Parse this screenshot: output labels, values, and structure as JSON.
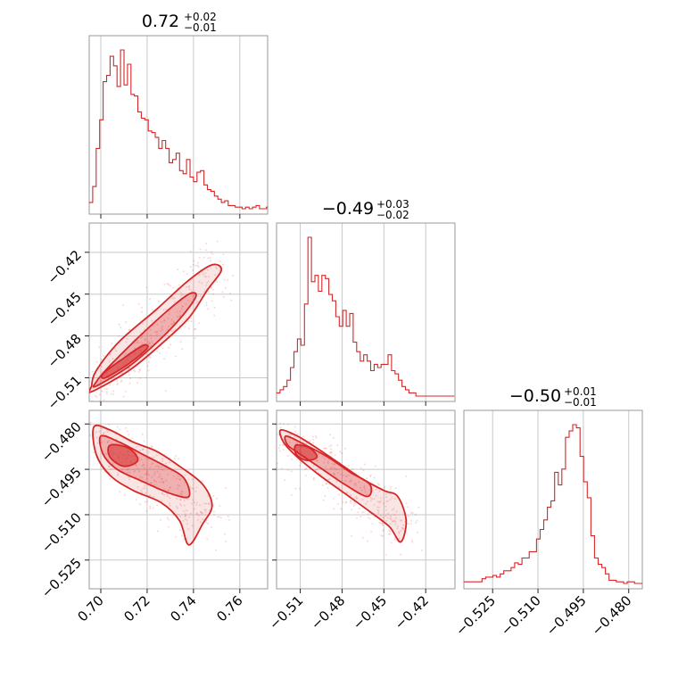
{
  "chart_data": {
    "type": "corner",
    "color": "#d62728",
    "parameters": [
      {
        "range": [
          0.695,
          0.772
        ],
        "ticks": [
          0.7,
          0.72,
          0.74,
          0.76
        ],
        "tick_labels": [
          "0.70",
          "0.72",
          "0.74",
          "0.76"
        ],
        "title": {
          "value": "0.72",
          "upper": "+0.02",
          "lower": "−0.01"
        },
        "hist_edges_start": 0.695,
        "hist_bin_width": 0.0015,
        "hist_counts": [
          4,
          14,
          38,
          56,
          80,
          84,
          96,
          90,
          77,
          100,
          78,
          91,
          72,
          71,
          61,
          57,
          56,
          49,
          48,
          45,
          38,
          43,
          38,
          29,
          31,
          35,
          24,
          22,
          31,
          20,
          17,
          23,
          24,
          15,
          12,
          11,
          8,
          6,
          4,
          5,
          2,
          2,
          1,
          1,
          0,
          1,
          0,
          1,
          2,
          0,
          0,
          1
        ]
      },
      {
        "range": [
          -0.527,
          -0.399
        ],
        "ticks": [
          -0.51,
          -0.48,
          -0.45,
          -0.42
        ],
        "tick_labels": [
          "−0.51",
          "−0.48",
          "−0.45",
          "−0.42"
        ],
        "title": {
          "value": "−0.49",
          "upper": "+0.03",
          "lower": "−0.02"
        },
        "hist_edges_start": -0.527,
        "hist_bin_width": 0.0025,
        "hist_counts": [
          2,
          4,
          6,
          10,
          18,
          28,
          36,
          32,
          58,
          100,
          72,
          76,
          66,
          76,
          74,
          64,
          60,
          50,
          44,
          54,
          44,
          52,
          34,
          28,
          22,
          26,
          22,
          16,
          20,
          18,
          20,
          20,
          26,
          16,
          14,
          10,
          6,
          4,
          2,
          2,
          0,
          0,
          0,
          0,
          0,
          0,
          0,
          0,
          0,
          0,
          0
        ]
      },
      {
        "range": [
          -0.5345,
          -0.4755
        ],
        "ticks": [
          -0.525,
          -0.51,
          -0.495,
          -0.48
        ],
        "tick_labels": [
          "−0.525",
          "−0.510",
          "−0.495",
          "−0.480"
        ],
        "title": {
          "value": "−0.50",
          "upper": "+0.01",
          "lower": "−0.01"
        },
        "hist_edges_start": -0.5345,
        "hist_bin_width": 0.0012,
        "hist_counts": [
          1,
          1,
          1,
          1,
          1,
          3,
          4,
          4,
          5,
          4,
          6,
          8,
          8,
          10,
          13,
          12,
          16,
          16,
          20,
          20,
          28,
          34,
          40,
          48,
          52,
          70,
          62,
          72,
          92,
          96,
          100,
          98,
          80,
          64,
          54,
          30,
          16,
          12,
          10,
          6,
          2,
          2,
          1,
          1,
          0,
          1,
          1,
          0,
          0,
          0
        ]
      }
    ],
    "pairs": [
      {
        "x_param": 0,
        "y_param": 1,
        "ridge": [
          [
            0.697,
            -0.518
          ],
          [
            0.7,
            -0.515
          ],
          [
            0.705,
            -0.508
          ],
          [
            0.71,
            -0.5
          ],
          [
            0.715,
            -0.493
          ],
          [
            0.72,
            -0.485
          ],
          [
            0.725,
            -0.477
          ],
          [
            0.73,
            -0.47
          ],
          [
            0.735,
            -0.46
          ],
          [
            0.74,
            -0.45
          ],
          [
            0.745,
            -0.438
          ],
          [
            0.749,
            -0.43
          ]
        ],
        "contours": [
          {
            "level": "outer",
            "points": [
              [
                0.696,
                -0.52
              ],
              [
                0.712,
                -0.505
              ],
              [
                0.726,
                -0.486
              ],
              [
                0.738,
                -0.467
              ],
              [
                0.746,
                -0.447
              ],
              [
                0.752,
                -0.433
              ],
              [
                0.748,
                -0.429
              ],
              [
                0.738,
                -0.44
              ],
              [
                0.724,
                -0.461
              ],
              [
                0.708,
                -0.484
              ],
              [
                0.698,
                -0.505
              ],
              [
                0.696,
                -0.516
              ]
            ]
          },
          {
            "level": "middle",
            "points": [
              [
                0.698,
                -0.516
              ],
              [
                0.712,
                -0.502
              ],
              [
                0.724,
                -0.485
              ],
              [
                0.734,
                -0.468
              ],
              [
                0.741,
                -0.452
              ],
              [
                0.738,
                -0.45
              ],
              [
                0.728,
                -0.463
              ],
              [
                0.715,
                -0.483
              ],
              [
                0.703,
                -0.503
              ],
              [
                0.698,
                -0.513
              ]
            ]
          },
          {
            "level": "inner",
            "points": [
              [
                0.702,
                -0.51
              ],
              [
                0.712,
                -0.5
              ],
              [
                0.72,
                -0.489
              ],
              [
                0.718,
                -0.487
              ],
              [
                0.709,
                -0.497
              ],
              [
                0.701,
                -0.507
              ]
            ]
          }
        ],
        "scatter_spread": [
          0.006,
          0.01
        ]
      },
      {
        "x_param": 0,
        "y_param": 2,
        "ridge": [
          [
            0.698,
            -0.482
          ],
          [
            0.703,
            -0.487
          ],
          [
            0.708,
            -0.49
          ],
          [
            0.713,
            -0.493
          ],
          [
            0.718,
            -0.495
          ],
          [
            0.723,
            -0.497
          ],
          [
            0.728,
            -0.5
          ],
          [
            0.733,
            -0.504
          ],
          [
            0.738,
            -0.508
          ],
          [
            0.742,
            -0.512
          ]
        ],
        "contours": [
          {
            "level": "outer",
            "points": [
              [
                0.697,
                -0.481
              ],
              [
                0.704,
                -0.482
              ],
              [
                0.714,
                -0.486
              ],
              [
                0.724,
                -0.489
              ],
              [
                0.734,
                -0.494
              ],
              [
                0.744,
                -0.5
              ],
              [
                0.748,
                -0.507
              ],
              [
                0.744,
                -0.513
              ],
              [
                0.738,
                -0.52
              ],
              [
                0.734,
                -0.512
              ],
              [
                0.726,
                -0.506
              ],
              [
                0.714,
                -0.502
              ],
              [
                0.704,
                -0.497
              ],
              [
                0.698,
                -0.49
              ]
            ]
          },
          {
            "level": "middle",
            "points": [
              [
                0.7,
                -0.484
              ],
              [
                0.708,
                -0.486
              ],
              [
                0.718,
                -0.49
              ],
              [
                0.728,
                -0.494
              ],
              [
                0.736,
                -0.498
              ],
              [
                0.738,
                -0.504
              ],
              [
                0.73,
                -0.503
              ],
              [
                0.718,
                -0.499
              ],
              [
                0.707,
                -0.495
              ],
              [
                0.701,
                -0.49
              ]
            ]
          },
          {
            "level": "inner",
            "points": [
              [
                0.704,
                -0.487
              ],
              [
                0.712,
                -0.488
              ],
              [
                0.716,
                -0.492
              ],
              [
                0.71,
                -0.494
              ],
              [
                0.704,
                -0.491
              ]
            ]
          }
        ],
        "scatter_spread": [
          0.007,
          0.004
        ]
      },
      {
        "x_param": 1,
        "y_param": 2,
        "ridge": [
          [
            -0.522,
            -0.483
          ],
          [
            -0.512,
            -0.488
          ],
          [
            -0.502,
            -0.492
          ],
          [
            -0.492,
            -0.496
          ],
          [
            -0.482,
            -0.499
          ],
          [
            -0.472,
            -0.502
          ],
          [
            -0.462,
            -0.505
          ],
          [
            -0.452,
            -0.508
          ],
          [
            -0.442,
            -0.512
          ],
          [
            -0.437,
            -0.515
          ]
        ],
        "contours": [
          {
            "level": "outer",
            "points": [
              [
                -0.524,
                -0.482
              ],
              [
                -0.512,
                -0.484
              ],
              [
                -0.498,
                -0.488
              ],
              [
                -0.482,
                -0.493
              ],
              [
                -0.466,
                -0.498
              ],
              [
                -0.45,
                -0.502
              ],
              [
                -0.44,
                -0.504
              ],
              [
                -0.434,
                -0.512
              ],
              [
                -0.438,
                -0.519
              ],
              [
                -0.446,
                -0.514
              ],
              [
                -0.46,
                -0.509
              ],
              [
                -0.478,
                -0.503
              ],
              [
                -0.496,
                -0.497
              ],
              [
                -0.512,
                -0.491
              ],
              [
                -0.522,
                -0.486
              ]
            ]
          },
          {
            "level": "middle",
            "points": [
              [
                -0.52,
                -0.484
              ],
              [
                -0.506,
                -0.487
              ],
              [
                -0.49,
                -0.491
              ],
              [
                -0.474,
                -0.496
              ],
              [
                -0.46,
                -0.5
              ],
              [
                -0.462,
                -0.504
              ],
              [
                -0.478,
                -0.5
              ],
              [
                -0.494,
                -0.495
              ],
              [
                -0.51,
                -0.49
              ],
              [
                -0.519,
                -0.487
              ]
            ]
          },
          {
            "level": "inner",
            "points": [
              [
                -0.513,
                -0.487
              ],
              [
                -0.503,
                -0.488
              ],
              [
                -0.498,
                -0.491
              ],
              [
                -0.506,
                -0.492
              ],
              [
                -0.513,
                -0.49
              ]
            ]
          }
        ],
        "scatter_spread": [
          0.01,
          0.004
        ]
      }
    ]
  }
}
